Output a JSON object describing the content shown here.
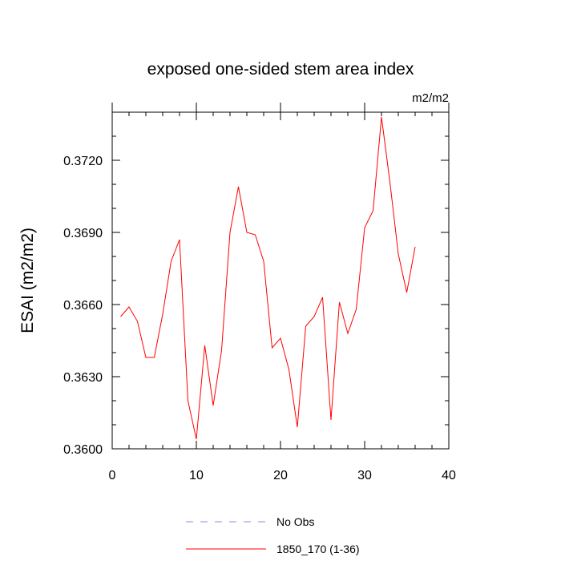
{
  "chart_data": {
    "type": "line",
    "title": "exposed one-sided stem area index",
    "units_label": "m2/m2",
    "ylabel": "ESAI  (m2/m2)",
    "xlabel": "",
    "xlim": [
      0,
      40
    ],
    "ylim": [
      0.36,
      0.374
    ],
    "x_ticks": [
      0,
      10,
      20,
      30,
      40
    ],
    "x_tick_labels": [
      "0",
      "10",
      "20",
      "30",
      "40"
    ],
    "y_ticks": [
      0.36,
      0.363,
      0.366,
      0.369,
      0.372
    ],
    "y_tick_labels": [
      "0.3600",
      "0.3630",
      "0.3660",
      "0.3690",
      "0.3720"
    ],
    "grid": false,
    "legend_position": "bottom-center",
    "series": [
      {
        "name": "1850_170 (1-36)",
        "color": "#ff0000",
        "style": "solid",
        "x": [
          1,
          2,
          3,
          4,
          5,
          6,
          7,
          8,
          9,
          10,
          11,
          12,
          13,
          14,
          15,
          16,
          17,
          18,
          19,
          20,
          21,
          22,
          23,
          24,
          25,
          26,
          27,
          28,
          29,
          30,
          31,
          32,
          33,
          34,
          35,
          36
        ],
        "values": [
          0.3655,
          0.3659,
          0.3653,
          0.3638,
          0.3638,
          0.3656,
          0.3678,
          0.3687,
          0.362,
          0.3604,
          0.3643,
          0.3618,
          0.3641,
          0.369,
          0.3709,
          0.369,
          0.3689,
          0.3678,
          0.3642,
          0.3646,
          0.3633,
          0.3609,
          0.3651,
          0.3655,
          0.3663,
          0.3612,
          0.3661,
          0.3648,
          0.3658,
          0.3692,
          0.3699,
          0.3738,
          0.3711,
          0.3681,
          0.3665,
          0.3684
        ]
      }
    ],
    "legend": [
      {
        "label": "No Obs",
        "color": "#8888ee",
        "style": "dashed"
      },
      {
        "label": "1850_170 (1-36)",
        "color": "#ff0000",
        "style": "solid"
      }
    ]
  }
}
